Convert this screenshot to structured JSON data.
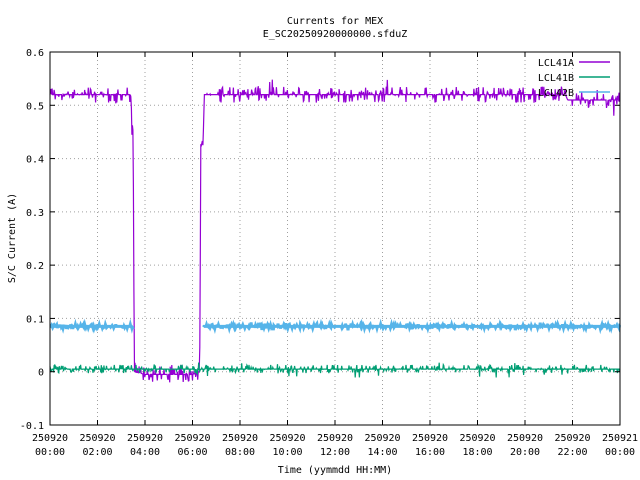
{
  "chart_data": {
    "type": "line",
    "title": "Currents for MEX",
    "subtitle": "E_SC20250920000000.sfduZ",
    "xlabel": "Time (yymmdd HH:MM)",
    "ylabel": "S/C Current (A)",
    "xlim": [
      0,
      24
    ],
    "ylim": [
      -0.1,
      0.6
    ],
    "grid": true,
    "legend_position": "top-right",
    "y_ticks": [
      "-0.1",
      "0",
      "0.1",
      "0.2",
      "0.3",
      "0.4",
      "0.5",
      "0.6"
    ],
    "x_ticks": [
      {
        "date": "250920",
        "time": "00:00"
      },
      {
        "date": "250920",
        "time": "02:00"
      },
      {
        "date": "250920",
        "time": "04:00"
      },
      {
        "date": "250920",
        "time": "06:00"
      },
      {
        "date": "250920",
        "time": "08:00"
      },
      {
        "date": "250920",
        "time": "10:00"
      },
      {
        "date": "250920",
        "time": "12:00"
      },
      {
        "date": "250920",
        "time": "14:00"
      },
      {
        "date": "250920",
        "time": "16:00"
      },
      {
        "date": "250920",
        "time": "18:00"
      },
      {
        "date": "250920",
        "time": "20:00"
      },
      {
        "date": "250920",
        "time": "22:00"
      },
      {
        "date": "250921",
        "time": "00:00"
      }
    ],
    "series": [
      {
        "name": "LCL41A",
        "color": "#9400d3",
        "x": [
          0,
          3.0,
          3.4,
          3.45,
          3.5,
          3.55,
          4.0,
          5.0,
          6.0,
          6.3,
          6.35,
          6.45,
          6.5,
          6.6,
          9.0,
          12.0,
          15.0,
          18.0,
          21.0,
          21.7,
          21.8,
          24.0
        ],
        "y": [
          0.52,
          0.52,
          0.52,
          0.47,
          0.45,
          0.0,
          -0.005,
          -0.005,
          -0.005,
          0.0,
          0.42,
          0.44,
          0.52,
          0.52,
          0.52,
          0.52,
          0.52,
          0.52,
          0.52,
          0.52,
          0.51,
          0.51
        ],
        "noise_amplitude": 0.015
      },
      {
        "name": "LCL41B",
        "color": "#009e73",
        "x": [
          0,
          6.0,
          12.0,
          18.0,
          24.0
        ],
        "y": [
          0.005,
          0.005,
          0.005,
          0.005,
          0.005
        ],
        "noise_amplitude": 0.008
      },
      {
        "name": "LCL42B",
        "color": "#56b4e9",
        "x": [
          0,
          3.5,
          3.55,
          6.4,
          6.45,
          12.0,
          24.0
        ],
        "y": [
          0.085,
          0.085,
          null,
          null,
          0.085,
          0.085,
          0.085
        ],
        "noise_amplitude": 0.004
      }
    ]
  }
}
